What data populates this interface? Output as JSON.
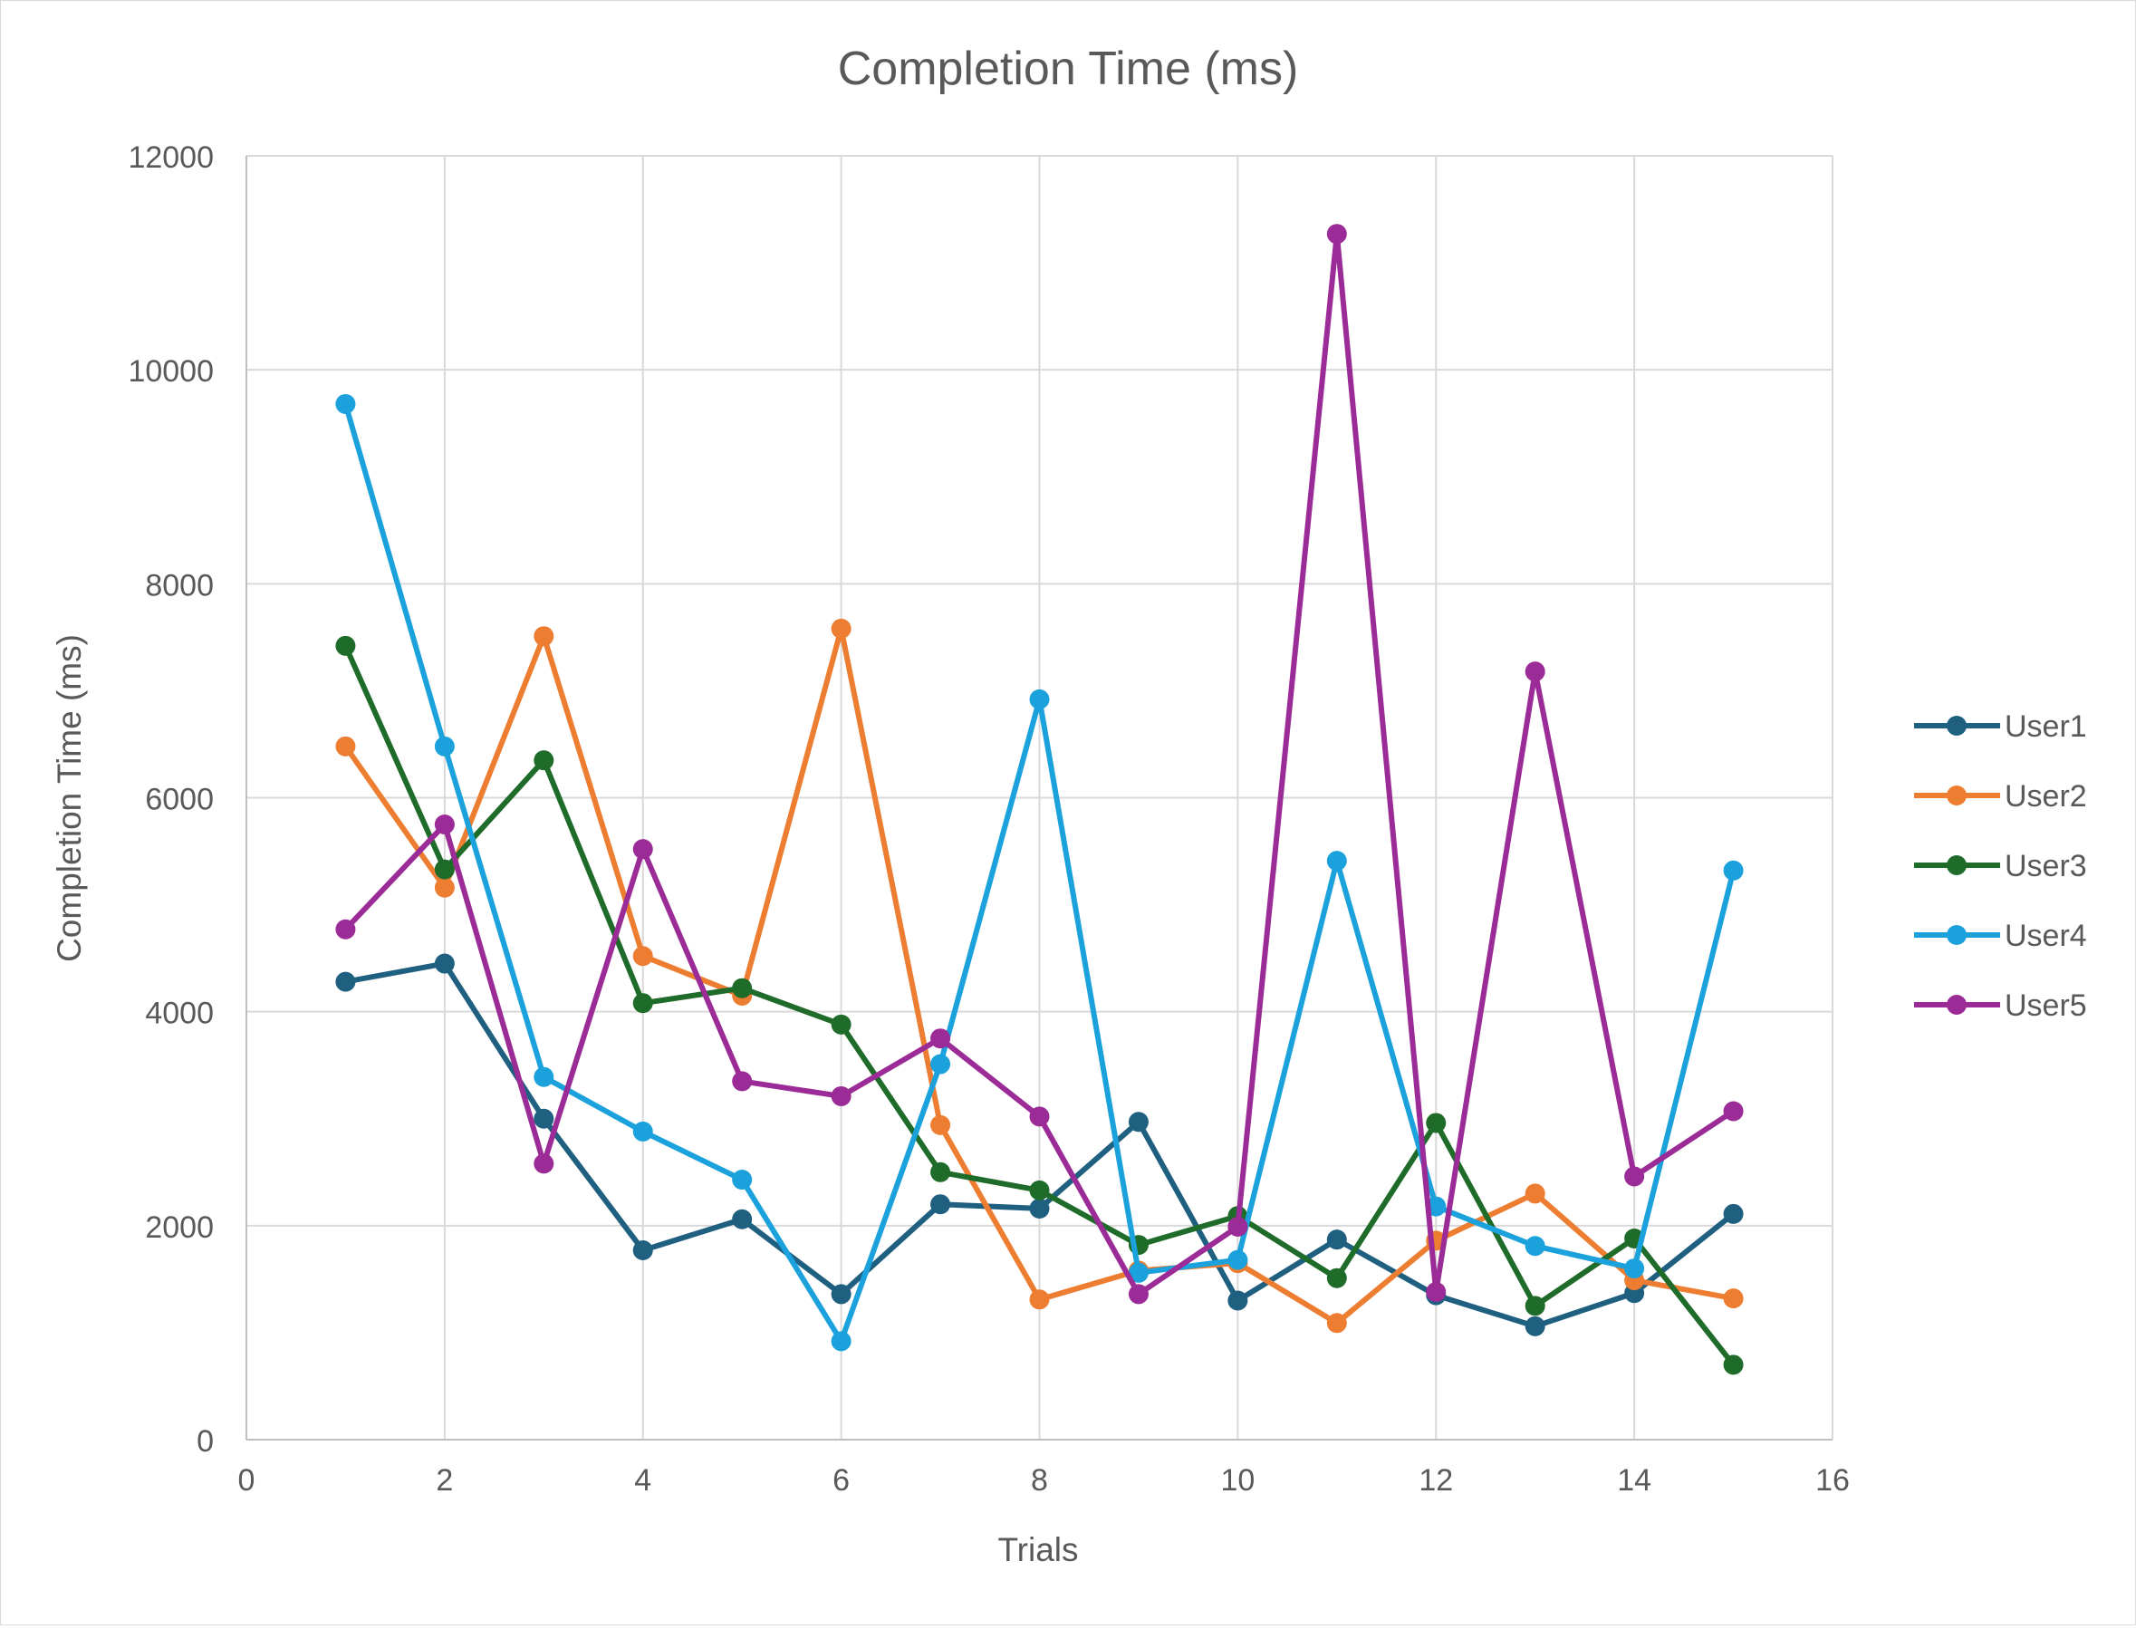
{
  "chart_data": {
    "type": "scatter",
    "title": "Completion Time (ms)",
    "xlabel": "Trials",
    "ylabel": "Completion Time (ms)",
    "xlim": [
      0,
      16
    ],
    "ylim": [
      0,
      12000
    ],
    "x_ticks": [
      "0",
      "2",
      "4",
      "6",
      "8",
      "10",
      "12",
      "14",
      "16"
    ],
    "y_ticks": [
      "0",
      "2000",
      "4000",
      "6000",
      "8000",
      "10000",
      "12000"
    ],
    "x_tick_values": [
      0,
      2,
      4,
      6,
      8,
      10,
      12,
      14,
      16
    ],
    "y_tick_values": [
      0,
      2000,
      4000,
      6000,
      8000,
      10000,
      12000
    ],
    "grid": true,
    "legend_position": "right",
    "x": [
      1,
      2,
      3,
      4,
      5,
      6,
      7,
      8,
      9,
      10,
      11,
      12,
      13,
      14,
      15
    ],
    "series": [
      {
        "name": "User1",
        "color": "#1f5f80",
        "values": [
          4280,
          4450,
          3000,
          1770,
          2060,
          1360,
          2200,
          2160,
          2970,
          1300,
          1870,
          1350,
          1060,
          1370,
          2110
        ]
      },
      {
        "name": "User2",
        "color": "#ed7d31",
        "values": [
          6480,
          5160,
          7510,
          4520,
          4150,
          7580,
          2940,
          1310,
          1580,
          1650,
          1090,
          1860,
          2300,
          1490,
          1320
        ]
      },
      {
        "name": "User3",
        "color": "#1e6b2a",
        "values": [
          7420,
          5330,
          6350,
          4080,
          4220,
          3880,
          2500,
          2330,
          1820,
          2090,
          1510,
          2960,
          1250,
          1880,
          700
        ]
      },
      {
        "name": "User4",
        "color": "#1ba1db",
        "values": [
          9680,
          6480,
          3390,
          2880,
          2430,
          920,
          3510,
          6920,
          1560,
          1680,
          5410,
          2180,
          1810,
          1600,
          5320
        ]
      },
      {
        "name": "User5",
        "color": "#9b2b96",
        "values": [
          4770,
          5750,
          2580,
          5520,
          3350,
          3210,
          3750,
          3020,
          1360,
          1990,
          11270,
          1380,
          7180,
          2460,
          3070
        ]
      }
    ]
  }
}
